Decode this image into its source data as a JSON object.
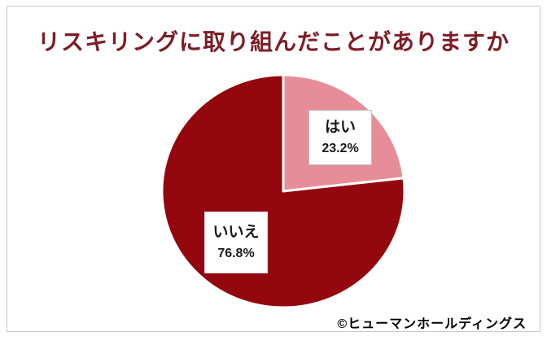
{
  "title": {
    "text": "リスキリングに取り組んだことがありますか",
    "color": "#7e1c25"
  },
  "credit": {
    "text": "©ヒューマンホールディングス"
  },
  "chart_data": {
    "type": "pie",
    "title": "リスキリングに取り組んだことがありますか",
    "start_angle_deg": 0,
    "direction": "clockwise",
    "separator_color": "#ffffff",
    "legend_position": "none",
    "slices": [
      {
        "label": "はい",
        "value": 23.2,
        "display": "23.2%",
        "color": "#e78d98"
      },
      {
        "label": "いいえ",
        "value": 76.8,
        "display": "76.8%",
        "color": "#94070e"
      }
    ]
  }
}
